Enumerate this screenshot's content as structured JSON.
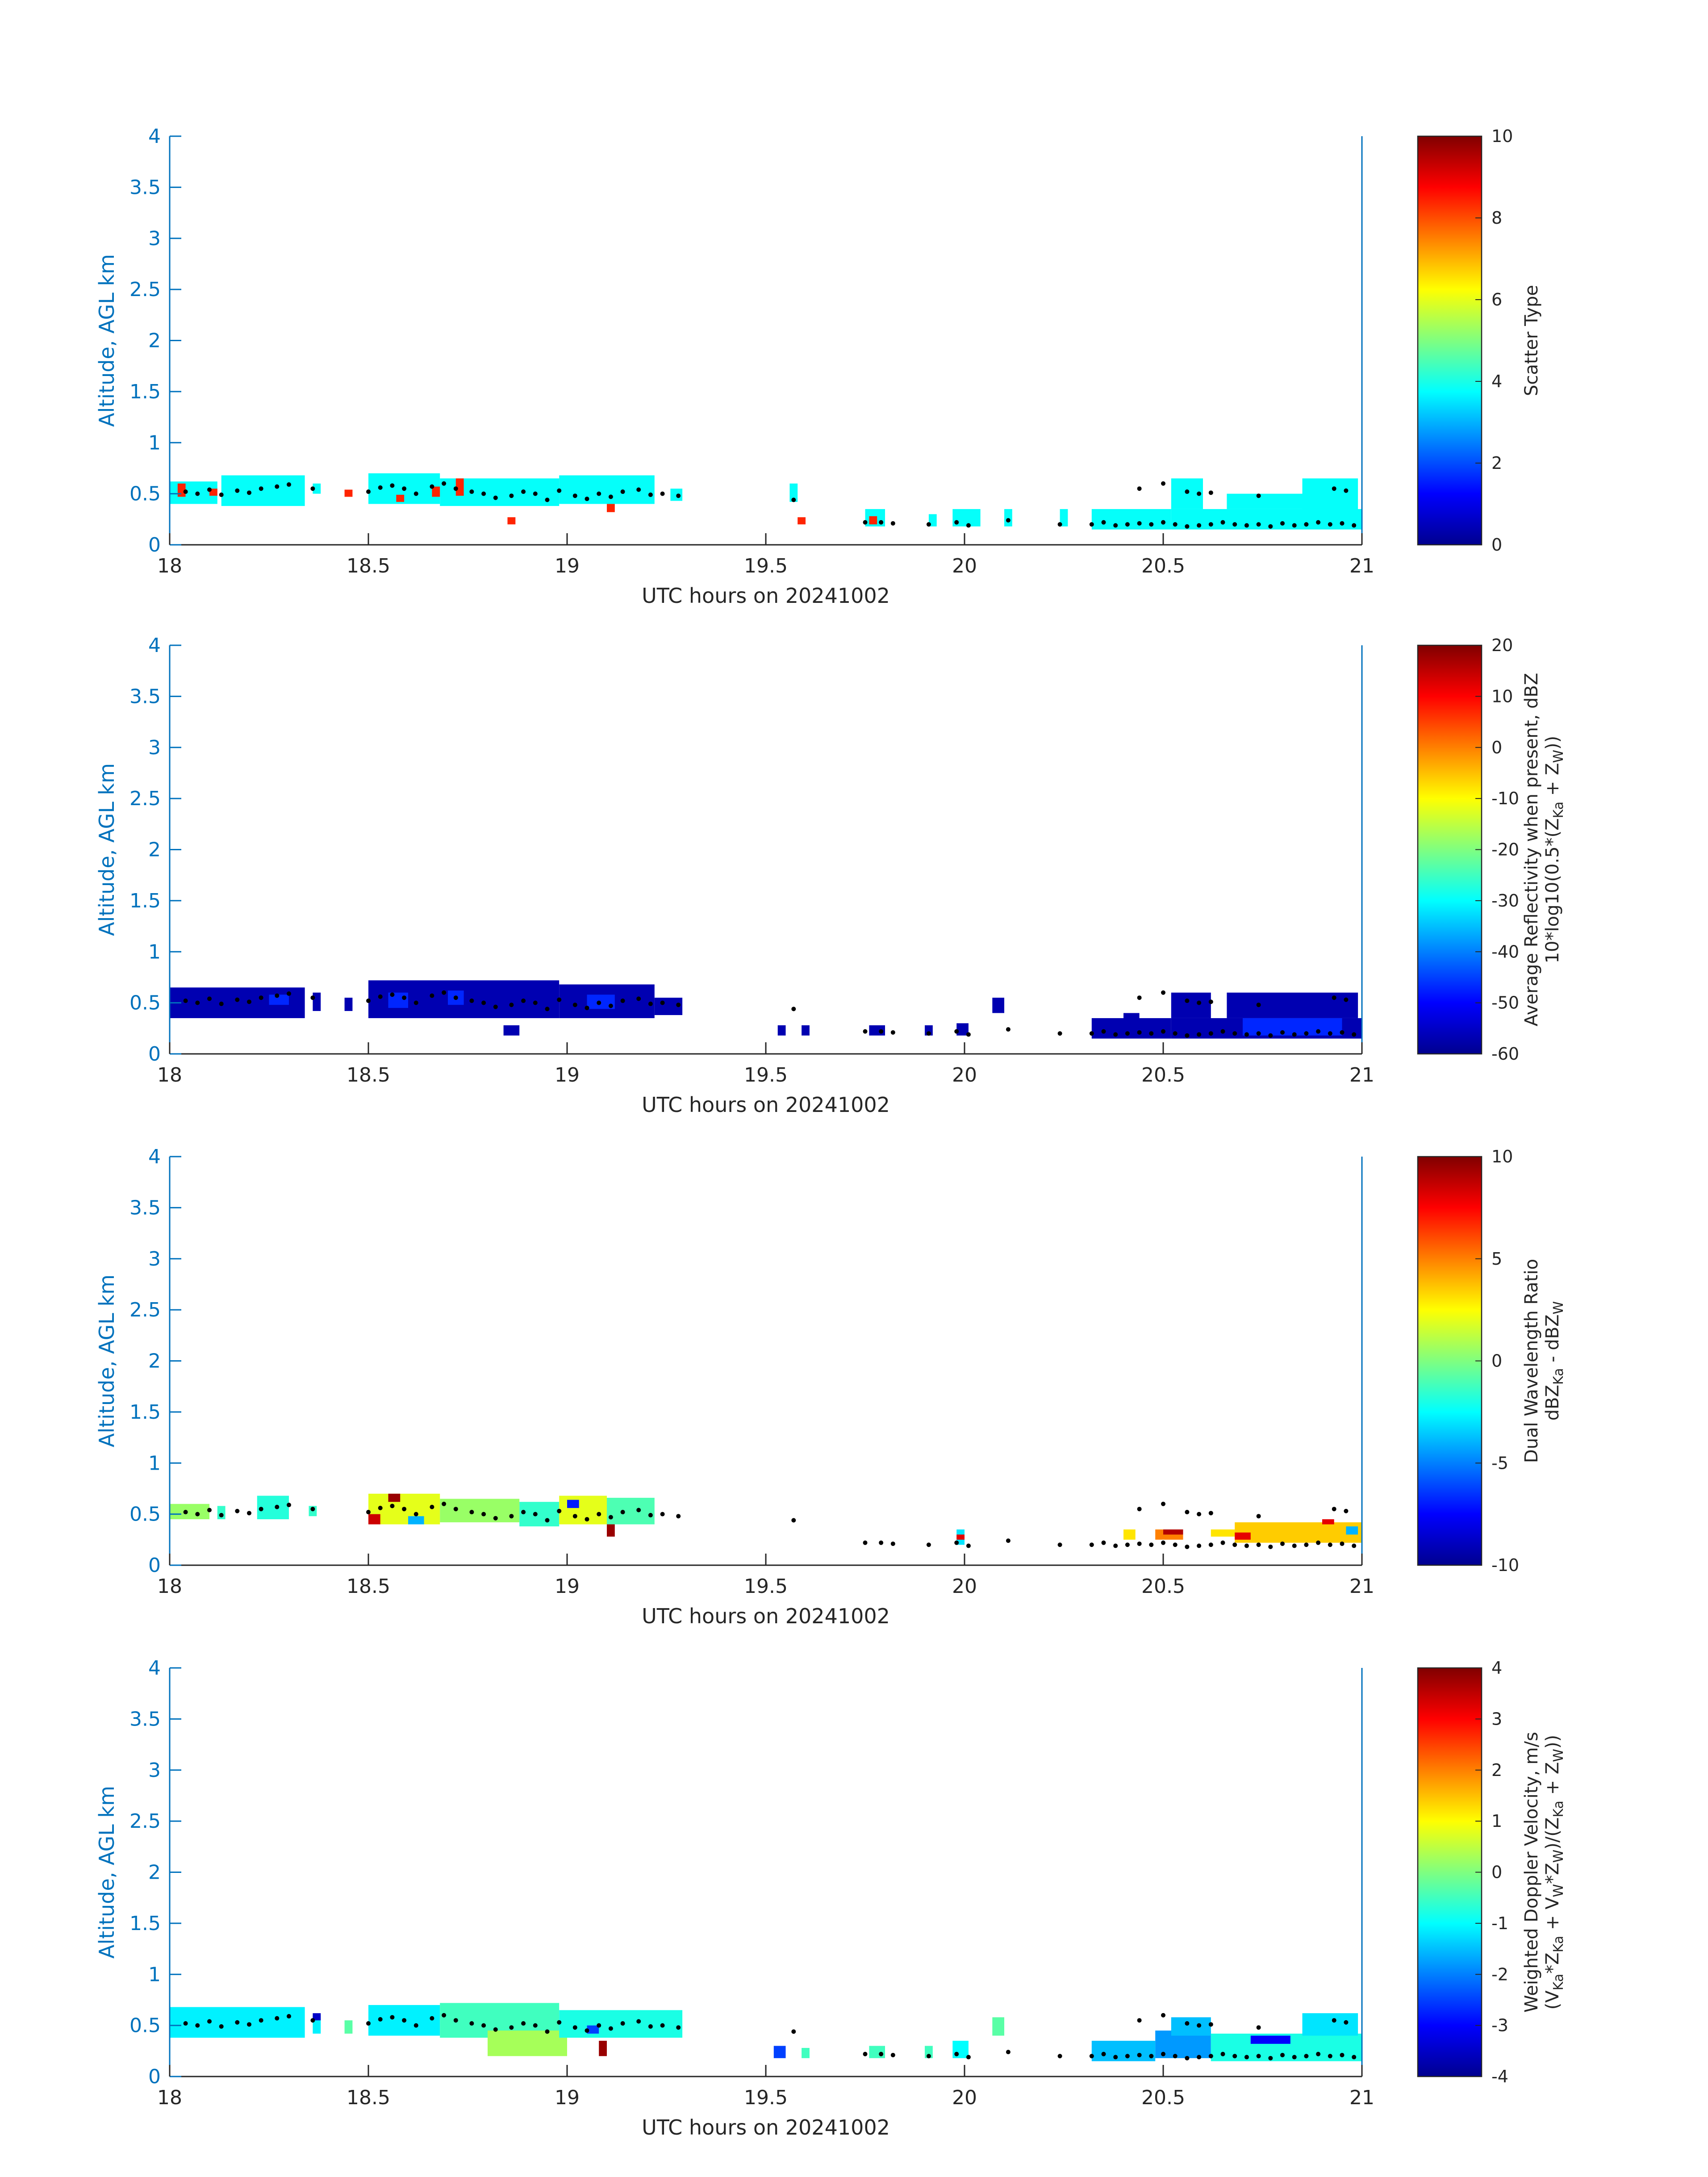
{
  "figure": {
    "colors": {
      "y_axis": "#0072bd",
      "x_axis": "#262626",
      "marker": "#000000"
    },
    "colormap": "jet"
  },
  "chart_data": [
    {
      "type": "heatmap",
      "xlabel": "UTC hours on 20241002",
      "ylabel": "Altitude, AGL km",
      "xlim": [
        18,
        21
      ],
      "ylim": [
        0,
        4
      ],
      "xticks": [
        "18",
        "18.5",
        "19",
        "19.5",
        "20",
        "20.5",
        "21"
      ],
      "yticks": [
        "0",
        "0.5",
        "1",
        "1.5",
        "2",
        "2.5",
        "3",
        "3.5",
        "4"
      ],
      "colorbar": {
        "label_lines": [
          "Scatter Type",
          ""
        ],
        "range": [
          0,
          10
        ],
        "ticks": [
          "0",
          "2",
          "4",
          "6",
          "8",
          "10"
        ],
        "tick_values": [
          0,
          2,
          4,
          6,
          8,
          10
        ]
      },
      "cells": [
        {
          "x0": 18.0,
          "x1": 18.12,
          "y0": 0.4,
          "y1": 0.62,
          "v": 3.8
        },
        {
          "x0": 18.13,
          "x1": 18.34,
          "y0": 0.38,
          "y1": 0.68,
          "v": 3.8
        },
        {
          "x0": 18.36,
          "x1": 18.38,
          "y0": 0.5,
          "y1": 0.6,
          "v": 3.8
        },
        {
          "x0": 18.5,
          "x1": 18.68,
          "y0": 0.4,
          "y1": 0.7,
          "v": 3.8
        },
        {
          "x0": 18.68,
          "x1": 18.98,
          "y0": 0.38,
          "y1": 0.65,
          "v": 3.8
        },
        {
          "x0": 18.98,
          "x1": 19.22,
          "y0": 0.4,
          "y1": 0.68,
          "v": 3.8
        },
        {
          "x0": 19.26,
          "x1": 19.29,
          "y0": 0.43,
          "y1": 0.55,
          "v": 3.8
        },
        {
          "x0": 19.56,
          "x1": 19.58,
          "y0": 0.42,
          "y1": 0.6,
          "v": 3.8
        },
        {
          "x0": 19.75,
          "x1": 19.8,
          "y0": 0.18,
          "y1": 0.35,
          "v": 3.8
        },
        {
          "x0": 19.91,
          "x1": 19.93,
          "y0": 0.18,
          "y1": 0.3,
          "v": 3.8
        },
        {
          "x0": 19.97,
          "x1": 20.04,
          "y0": 0.18,
          "y1": 0.35,
          "v": 3.8
        },
        {
          "x0": 20.1,
          "x1": 20.12,
          "y0": 0.18,
          "y1": 0.35,
          "v": 3.8
        },
        {
          "x0": 20.24,
          "x1": 20.26,
          "y0": 0.18,
          "y1": 0.35,
          "v": 3.8
        },
        {
          "x0": 20.32,
          "x1": 20.52,
          "y0": 0.15,
          "y1": 0.35,
          "v": 3.8
        },
        {
          "x0": 20.52,
          "x1": 21.0,
          "y0": 0.15,
          "y1": 0.35,
          "v": 3.8
        },
        {
          "x0": 20.52,
          "x1": 20.6,
          "y0": 0.35,
          "y1": 0.65,
          "v": 3.8
        },
        {
          "x0": 20.66,
          "x1": 20.85,
          "y0": 0.35,
          "y1": 0.5,
          "v": 3.8
        },
        {
          "x0": 20.85,
          "x1": 20.99,
          "y0": 0.33,
          "y1": 0.65,
          "v": 3.8
        },
        {
          "x0": 18.02,
          "x1": 18.04,
          "y0": 0.47,
          "y1": 0.6,
          "v": 8.4
        },
        {
          "x0": 18.1,
          "x1": 18.12,
          "y0": 0.48,
          "y1": 0.55,
          "v": 8.4
        },
        {
          "x0": 18.44,
          "x1": 18.46,
          "y0": 0.47,
          "y1": 0.54,
          "v": 8.4
        },
        {
          "x0": 18.57,
          "x1": 18.59,
          "y0": 0.42,
          "y1": 0.49,
          "v": 8.4
        },
        {
          "x0": 18.66,
          "x1": 18.68,
          "y0": 0.47,
          "y1": 0.57,
          "v": 8.4
        },
        {
          "x0": 18.72,
          "x1": 18.74,
          "y0": 0.48,
          "y1": 0.65,
          "v": 8.4
        },
        {
          "x0": 18.85,
          "x1": 18.87,
          "y0": 0.2,
          "y1": 0.27,
          "v": 8.4
        },
        {
          "x0": 19.1,
          "x1": 19.12,
          "y0": 0.32,
          "y1": 0.4,
          "v": 8.4
        },
        {
          "x0": 19.58,
          "x1": 19.6,
          "y0": 0.2,
          "y1": 0.27,
          "v": 8.4
        },
        {
          "x0": 19.76,
          "x1": 19.78,
          "y0": 0.2,
          "y1": 0.28,
          "v": 8.4
        }
      ]
    },
    {
      "type": "heatmap",
      "xlabel": "UTC hours on 20241002",
      "ylabel": "Altitude, AGL km",
      "xlim": [
        18,
        21
      ],
      "ylim": [
        0,
        4
      ],
      "xticks": [
        "18",
        "18.5",
        "19",
        "19.5",
        "20",
        "20.5",
        "21"
      ],
      "yticks": [
        "0",
        "0.5",
        "1",
        "1.5",
        "2",
        "2.5",
        "3",
        "3.5",
        "4"
      ],
      "colorbar": {
        "label_lines": [
          "Average Reflectivity when present, dBZ",
          "10*log10(0.5*(Z",
          "Ka",
          " + Z",
          "W",
          "))"
        ],
        "range": [
          -60,
          20
        ],
        "ticks": [
          "-60",
          "-50",
          "-40",
          "-30",
          "-20",
          "-10",
          "0",
          "10",
          "20"
        ],
        "tick_values": [
          -60,
          -50,
          -40,
          -30,
          -20,
          -10,
          0,
          10,
          20
        ]
      },
      "cells": [
        {
          "x0": 18.0,
          "x1": 18.34,
          "y0": 0.35,
          "y1": 0.65,
          "v": -57
        },
        {
          "x0": 18.36,
          "x1": 18.38,
          "y0": 0.42,
          "y1": 0.6,
          "v": -57
        },
        {
          "x0": 18.44,
          "x1": 18.46,
          "y0": 0.42,
          "y1": 0.55,
          "v": -57
        },
        {
          "x0": 18.5,
          "x1": 18.98,
          "y0": 0.35,
          "y1": 0.72,
          "v": -57
        },
        {
          "x0": 18.98,
          "x1": 19.22,
          "y0": 0.35,
          "y1": 0.68,
          "v": -57
        },
        {
          "x0": 19.22,
          "x1": 19.29,
          "y0": 0.38,
          "y1": 0.55,
          "v": -57
        },
        {
          "x0": 18.84,
          "x1": 18.88,
          "y0": 0.18,
          "y1": 0.28,
          "v": -57
        },
        {
          "x0": 18.55,
          "x1": 18.6,
          "y0": 0.45,
          "y1": 0.6,
          "v": -47
        },
        {
          "x0": 18.7,
          "x1": 18.74,
          "y0": 0.48,
          "y1": 0.62,
          "v": -47
        },
        {
          "x0": 19.05,
          "x1": 19.12,
          "y0": 0.44,
          "y1": 0.58,
          "v": -47
        },
        {
          "x0": 18.25,
          "x1": 18.3,
          "y0": 0.48,
          "y1": 0.58,
          "v": -47
        },
        {
          "x0": 19.53,
          "x1": 19.55,
          "y0": 0.18,
          "y1": 0.28,
          "v": -57
        },
        {
          "x0": 19.59,
          "x1": 19.61,
          "y0": 0.18,
          "y1": 0.28,
          "v": -57
        },
        {
          "x0": 19.76,
          "x1": 19.8,
          "y0": 0.18,
          "y1": 0.28,
          "v": -57
        },
        {
          "x0": 19.9,
          "x1": 19.92,
          "y0": 0.18,
          "y1": 0.28,
          "v": -57
        },
        {
          "x0": 19.98,
          "x1": 20.01,
          "y0": 0.18,
          "y1": 0.3,
          "v": -57
        },
        {
          "x0": 20.07,
          "x1": 20.1,
          "y0": 0.4,
          "y1": 0.55,
          "v": -57
        },
        {
          "x0": 20.32,
          "x1": 20.52,
          "y0": 0.15,
          "y1": 0.35,
          "v": -57
        },
        {
          "x0": 20.4,
          "x1": 20.44,
          "y0": 0.3,
          "y1": 0.4,
          "v": -57
        },
        {
          "x0": 20.52,
          "x1": 20.62,
          "y0": 0.35,
          "y1": 0.6,
          "v": -57
        },
        {
          "x0": 20.52,
          "x1": 21.0,
          "y0": 0.15,
          "y1": 0.35,
          "v": -57
        },
        {
          "x0": 20.66,
          "x1": 20.99,
          "y0": 0.35,
          "y1": 0.6,
          "v": -57
        },
        {
          "x0": 20.7,
          "x1": 20.95,
          "y0": 0.18,
          "y1": 0.35,
          "v": -47
        }
      ]
    },
    {
      "type": "heatmap",
      "xlabel": "UTC hours on 20241002",
      "ylabel": "Altitude, AGL km",
      "xlim": [
        18,
        21
      ],
      "ylim": [
        0,
        4
      ],
      "xticks": [
        "18",
        "18.5",
        "19",
        "19.5",
        "20",
        "20.5",
        "21"
      ],
      "yticks": [
        "0",
        "0.5",
        "1",
        "1.5",
        "2",
        "2.5",
        "3",
        "3.5",
        "4"
      ],
      "colorbar": {
        "label_lines": [
          "Dual Wavelength Ratio",
          "dBZ",
          "Ka",
          " - dBZ",
          "W",
          ""
        ],
        "range": [
          -10,
          10
        ],
        "ticks": [
          "-10",
          "-5",
          "0",
          "5",
          "10"
        ],
        "tick_values": [
          -10,
          -5,
          0,
          5,
          10
        ]
      },
      "cells": [
        {
          "x0": 18.0,
          "x1": 18.1,
          "y0": 0.45,
          "y1": 0.6,
          "v": 0.5
        },
        {
          "x0": 18.12,
          "x1": 18.14,
          "y0": 0.45,
          "y1": 0.58,
          "v": -1.5
        },
        {
          "x0": 18.22,
          "x1": 18.3,
          "y0": 0.45,
          "y1": 0.68,
          "v": -1.8
        },
        {
          "x0": 18.35,
          "x1": 18.37,
          "y0": 0.48,
          "y1": 0.58,
          "v": -1.5
        },
        {
          "x0": 18.5,
          "x1": 18.68,
          "y0": 0.4,
          "y1": 0.7,
          "v": 2.0
        },
        {
          "x0": 18.68,
          "x1": 18.88,
          "y0": 0.42,
          "y1": 0.65,
          "v": 0.5
        },
        {
          "x0": 18.88,
          "x1": 18.98,
          "y0": 0.38,
          "y1": 0.62,
          "v": -1.5
        },
        {
          "x0": 18.98,
          "x1": 19.1,
          "y0": 0.4,
          "y1": 0.68,
          "v": 2.0
        },
        {
          "x0": 19.1,
          "x1": 19.22,
          "y0": 0.4,
          "y1": 0.66,
          "v": -1.0
        },
        {
          "x0": 18.5,
          "x1": 18.53,
          "y0": 0.4,
          "y1": 0.5,
          "v": 8.5
        },
        {
          "x0": 18.55,
          "x1": 18.58,
          "y0": 0.62,
          "y1": 0.7,
          "v": 9.5
        },
        {
          "x0": 18.6,
          "x1": 18.64,
          "y0": 0.4,
          "y1": 0.48,
          "v": -4.0
        },
        {
          "x0": 19.1,
          "x1": 19.12,
          "y0": 0.28,
          "y1": 0.4,
          "v": 9.5
        },
        {
          "x0": 19.0,
          "x1": 19.03,
          "y0": 0.56,
          "y1": 0.64,
          "v": -7.0
        },
        {
          "x0": 19.98,
          "x1": 20.0,
          "y0": 0.2,
          "y1": 0.35,
          "v": -3.0
        },
        {
          "x0": 19.98,
          "x1": 20.0,
          "y0": 0.25,
          "y1": 0.3,
          "v": 8.0
        },
        {
          "x0": 20.4,
          "x1": 20.43,
          "y0": 0.25,
          "y1": 0.35,
          "v": 3.0
        },
        {
          "x0": 20.48,
          "x1": 20.55,
          "y0": 0.25,
          "y1": 0.35,
          "v": 5.0
        },
        {
          "x0": 20.5,
          "x1": 20.55,
          "y0": 0.3,
          "y1": 0.35,
          "v": 9.0
        },
        {
          "x0": 20.62,
          "x1": 20.68,
          "y0": 0.28,
          "y1": 0.35,
          "v": 3.0
        },
        {
          "x0": 20.68,
          "x1": 21.0,
          "y0": 0.22,
          "y1": 0.42,
          "v": 3.5
        },
        {
          "x0": 20.68,
          "x1": 20.72,
          "y0": 0.25,
          "y1": 0.32,
          "v": 8.0
        },
        {
          "x0": 20.9,
          "x1": 20.93,
          "y0": 0.4,
          "y1": 0.45,
          "v": 8.0
        },
        {
          "x0": 20.96,
          "x1": 20.99,
          "y0": 0.3,
          "y1": 0.38,
          "v": -4.0
        }
      ]
    },
    {
      "type": "heatmap",
      "xlabel": "UTC hours on 20241002",
      "ylabel": "Altitude, AGL km",
      "xlim": [
        18,
        21
      ],
      "ylim": [
        0,
        4
      ],
      "xticks": [
        "18",
        "18.5",
        "19",
        "19.5",
        "20",
        "20.5",
        "21"
      ],
      "yticks": [
        "0",
        "0.5",
        "1",
        "1.5",
        "2",
        "2.5",
        "3",
        "3.5",
        "4"
      ],
      "colorbar": {
        "label_lines": [
          "Weighted Doppler Velocity, m/s",
          "(V",
          "Ka",
          "*Z",
          "Ka",
          " + V",
          "W",
          "*Z",
          "W",
          ")/(Z",
          "Ka",
          " + Z",
          "W",
          "))"
        ],
        "range": [
          -4,
          4
        ],
        "ticks": [
          "-4",
          "-3",
          "-2",
          "-1",
          "0",
          "1",
          "2",
          "3",
          "4"
        ],
        "tick_values": [
          -4,
          -3,
          -2,
          -1,
          0,
          1,
          2,
          3,
          4
        ]
      },
      "cells": [
        {
          "x0": 18.0,
          "x1": 18.34,
          "y0": 0.38,
          "y1": 0.68,
          "v": -1.1
        },
        {
          "x0": 18.36,
          "x1": 18.38,
          "y0": 0.42,
          "y1": 0.6,
          "v": -1.1
        },
        {
          "x0": 18.44,
          "x1": 18.46,
          "y0": 0.42,
          "y1": 0.55,
          "v": -0.3
        },
        {
          "x0": 18.5,
          "x1": 18.68,
          "y0": 0.4,
          "y1": 0.7,
          "v": -1.1
        },
        {
          "x0": 18.68,
          "x1": 18.98,
          "y0": 0.38,
          "y1": 0.72,
          "v": -0.5
        },
        {
          "x0": 18.8,
          "x1": 19.0,
          "y0": 0.2,
          "y1": 0.45,
          "v": 0.3
        },
        {
          "x0": 18.98,
          "x1": 19.29,
          "y0": 0.38,
          "y1": 0.65,
          "v": -0.8
        },
        {
          "x0": 19.08,
          "x1": 19.1,
          "y0": 0.2,
          "y1": 0.35,
          "v": 3.8
        },
        {
          "x0": 18.36,
          "x1": 18.38,
          "y0": 0.55,
          "y1": 0.62,
          "v": -3.5
        },
        {
          "x0": 19.05,
          "x1": 19.08,
          "y0": 0.42,
          "y1": 0.5,
          "v": -2.5
        },
        {
          "x0": 19.52,
          "x1": 19.55,
          "y0": 0.18,
          "y1": 0.3,
          "v": -2.5
        },
        {
          "x0": 19.59,
          "x1": 19.61,
          "y0": 0.18,
          "y1": 0.28,
          "v": -0.5
        },
        {
          "x0": 19.76,
          "x1": 19.8,
          "y0": 0.18,
          "y1": 0.3,
          "v": -0.5
        },
        {
          "x0": 19.9,
          "x1": 19.92,
          "y0": 0.18,
          "y1": 0.3,
          "v": -0.5
        },
        {
          "x0": 19.97,
          "x1": 20.01,
          "y0": 0.18,
          "y1": 0.35,
          "v": -1.0
        },
        {
          "x0": 20.07,
          "x1": 20.1,
          "y0": 0.4,
          "y1": 0.58,
          "v": -0.3
        },
        {
          "x0": 20.32,
          "x1": 20.48,
          "y0": 0.15,
          "y1": 0.35,
          "v": -1.5
        },
        {
          "x0": 20.48,
          "x1": 20.62,
          "y0": 0.18,
          "y1": 0.45,
          "v": -1.8
        },
        {
          "x0": 20.52,
          "x1": 20.62,
          "y0": 0.4,
          "y1": 0.58,
          "v": -1.5
        },
        {
          "x0": 20.62,
          "x1": 21.0,
          "y0": 0.15,
          "y1": 0.42,
          "v": -0.8
        },
        {
          "x0": 20.85,
          "x1": 20.99,
          "y0": 0.4,
          "y1": 0.62,
          "v": -1.2
        },
        {
          "x0": 20.72,
          "x1": 20.82,
          "y0": 0.32,
          "y1": 0.4,
          "v": -3.0
        }
      ]
    }
  ],
  "markers_t": [
    18.04,
    18.07,
    18.1,
    18.13,
    18.17,
    18.2,
    18.23,
    18.27,
    18.3,
    18.36,
    18.5,
    18.53,
    18.56,
    18.59,
    18.62,
    18.66,
    18.69,
    18.72,
    18.76,
    18.79,
    18.82,
    18.86,
    18.89,
    18.92,
    18.95,
    18.98,
    19.02,
    19.05,
    19.08,
    19.11,
    19.14,
    19.18,
    19.21,
    19.24,
    19.28,
    19.57,
    19.75,
    19.79,
    19.82,
    19.91,
    19.98,
    20.01,
    20.11,
    20.24,
    20.32,
    20.35,
    20.38,
    20.41,
    20.44,
    20.47,
    20.5,
    20.53,
    20.56,
    20.59,
    20.62,
    20.65,
    20.68,
    20.71,
    20.74,
    20.77,
    20.8,
    20.83,
    20.86,
    20.89,
    20.92,
    20.95,
    20.98
  ],
  "markers_h": [
    0.52,
    0.5,
    0.54,
    0.49,
    0.53,
    0.51,
    0.55,
    0.57,
    0.59,
    0.55,
    0.52,
    0.56,
    0.58,
    0.55,
    0.5,
    0.57,
    0.6,
    0.55,
    0.52,
    0.5,
    0.46,
    0.48,
    0.52,
    0.5,
    0.44,
    0.53,
    0.48,
    0.45,
    0.5,
    0.47,
    0.52,
    0.54,
    0.49,
    0.5,
    0.48,
    0.44,
    0.22,
    0.22,
    0.21,
    0.2,
    0.22,
    0.19,
    0.24,
    0.2,
    0.2,
    0.22,
    0.19,
    0.2,
    0.21,
    0.2,
    0.22,
    0.2,
    0.18,
    0.19,
    0.2,
    0.22,
    0.2,
    0.19,
    0.2,
    0.18,
    0.21,
    0.19,
    0.2,
    0.22,
    0.2,
    0.21,
    0.19
  ],
  "extra_markers": [
    [
      20.44,
      0.55
    ],
    [
      20.5,
      0.6
    ],
    [
      20.56,
      0.52
    ],
    [
      20.59,
      0.5
    ],
    [
      20.62,
      0.51
    ],
    [
      20.74,
      0.48
    ],
    [
      20.93,
      0.55
    ],
    [
      20.96,
      0.53
    ]
  ]
}
